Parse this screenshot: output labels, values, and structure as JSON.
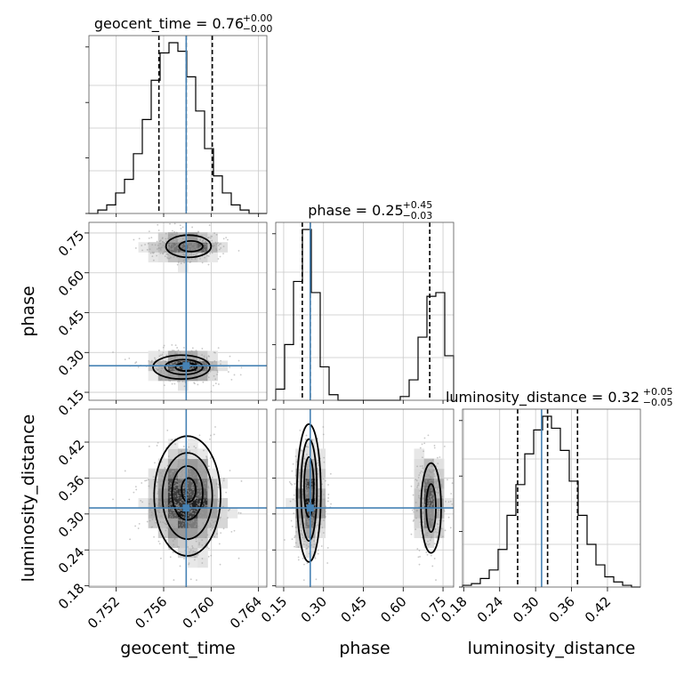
{
  "chart_data": {
    "type": "corner",
    "parameters": [
      "geocent_time",
      "phase",
      "luminosity_distance"
    ],
    "truths": {
      "geocent_time": 0.7579,
      "phase": 0.25,
      "luminosity_distance": 0.31
    },
    "titles": [
      {
        "param": "geocent_time",
        "main": "geocent_time = 0.76",
        "sup": "+0.00",
        "sub": "−0.00"
      },
      {
        "param": "phase",
        "main": "phase = 0.25",
        "sup": "+0.45",
        "sub": "−0.03"
      },
      {
        "param": "luminosity_distance",
        "main": "luminosity_distance = 0.32",
        "sup": "+0.05",
        "sub": "−0.05"
      }
    ],
    "ranges": {
      "geocent_time": [
        0.7497,
        0.7647
      ],
      "phase": [
        0.12,
        0.79
      ],
      "luminosity_distance": [
        0.178,
        0.475
      ]
    },
    "ticks": {
      "geocent_time": [
        "0.752",
        "0.756",
        "0.760",
        "0.764"
      ],
      "phase": [
        "0.15",
        "0.30",
        "0.45",
        "0.60",
        "0.75"
      ],
      "luminosity_distance": [
        "0.18",
        "0.24",
        "0.30",
        "0.36",
        "0.42"
      ]
    },
    "marginals": {
      "geocent_time": {
        "edges_start": 0.7497,
        "bin_width": 0.00075,
        "counts": [
          0,
          2,
          5,
          12,
          20,
          35,
          55,
          78,
          94,
          100,
          95,
          80,
          60,
          38,
          22,
          12,
          5,
          2,
          0,
          0
        ],
        "quantiles": [
          0.7556,
          0.7579,
          0.7601
        ]
      },
      "phase": {
        "edges_start": 0.12,
        "bin_width": 0.0335,
        "counts": [
          6,
          30,
          64,
          92,
          58,
          18,
          3,
          0,
          0,
          0,
          0,
          0,
          0,
          0,
          2,
          11,
          34,
          56,
          58,
          24
        ],
        "quantiles": [
          0.22,
          0.25,
          0.7
        ]
      },
      "luminosity_distance": {
        "edges_start": 0.178,
        "bin_width": 0.01485,
        "counts": [
          1,
          2,
          5,
          10,
          22,
          42,
          60,
          78,
          92,
          100,
          93,
          80,
          62,
          42,
          25,
          13,
          6,
          3,
          1,
          0
        ],
        "quantiles": [
          0.27,
          0.32,
          0.37
        ]
      }
    }
  }
}
